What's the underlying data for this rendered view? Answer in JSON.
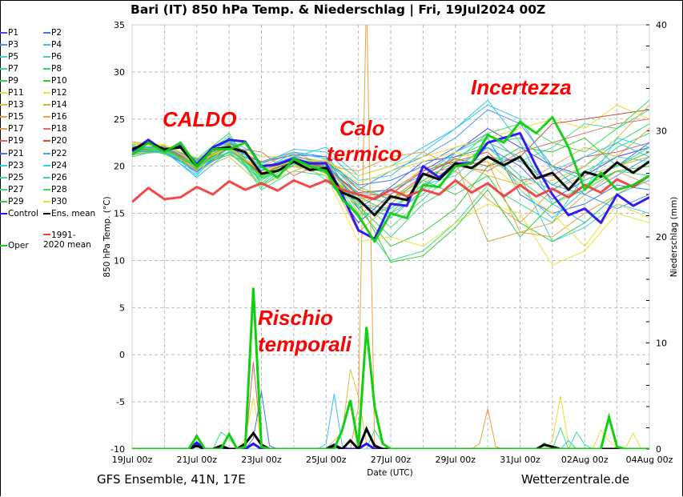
{
  "title": "Bari  (IT)  850 hPa Temp. & Niederschlag | Fri, 19Jul2024 00Z",
  "footer": {
    "left": "GFS Ensemble, 41N, 17E",
    "right": "Wetterzentrale.de"
  },
  "annotations": [
    "CALDO",
    "Calo",
    "termico",
    "Incertezza",
    "Rischio",
    "temporali"
  ],
  "chart_data": {
    "type": "line",
    "title": "Bari  (IT)  850 hPa Temp. & Niederschlag | Fri, 19Jul2024 00Z",
    "xlabel": "Date (UTC)",
    "ylabel": "850 hPa Temp. (°C)",
    "y2label": "Niederschlag (mm)",
    "xlim_hours": [
      0,
      384
    ],
    "ylim": [
      -10,
      35
    ],
    "y2lim": [
      0,
      40
    ],
    "grid": true,
    "legend_position": "left-outside",
    "x_tick_labels": [
      "19Jul 00z",
      "21Jul 00z",
      "23Jul 00z",
      "25Jul 00z",
      "27Jul 00z",
      "29Jul 00z",
      "31Jul 00z",
      "02Aug 00z",
      "04Aug 00z"
    ],
    "y_ticks": [
      35,
      30,
      25,
      20,
      15,
      10,
      5,
      0,
      -5,
      -10
    ],
    "y2_ticks": [
      40,
      30,
      20,
      10,
      0
    ],
    "main_step_hours": 12,
    "main_series": [
      {
        "name": "Control",
        "color": "#2a10f0",
        "values": [
          21.6,
          22.8,
          21.6,
          22.2,
          20.2,
          22.0,
          22.8,
          22.6,
          20.0,
          20.2,
          20.8,
          20.3,
          20.3,
          17.0,
          13.2,
          12.3,
          16.0,
          15.8,
          20.0,
          18.8,
          20.3,
          20.3,
          22.5,
          23.0,
          23.5,
          20.0,
          17.0,
          14.8,
          15.5,
          14.0,
          17.0,
          15.8,
          16.7
        ]
      },
      {
        "name": "Ens. mean",
        "color": "#000000",
        "values": [
          21.8,
          22.5,
          21.8,
          22.0,
          20.0,
          21.8,
          22.0,
          21.5,
          19.2,
          19.5,
          20.5,
          19.6,
          19.8,
          17.2,
          16.5,
          14.8,
          16.8,
          16.4,
          19.2,
          18.6,
          20.3,
          19.8,
          21.0,
          20.1,
          21.0,
          18.7,
          19.3,
          17.5,
          19.4,
          18.9,
          20.4,
          19.3,
          20.5
        ]
      },
      {
        "name": "1991-2020 mean",
        "color": "#f04040",
        "values": [
          16.2,
          17.7,
          16.5,
          16.7,
          17.8,
          17.0,
          18.4,
          17.5,
          18.2,
          17.4,
          18.5,
          17.8,
          18.5,
          17.5,
          17.0,
          16.5,
          17.5,
          16.8,
          17.5,
          17.0,
          18.5,
          17.2,
          18.2,
          16.8,
          18.0,
          16.8,
          17.6,
          16.7,
          18.0,
          17.2,
          18.6,
          17.8,
          19.0
        ]
      },
      {
        "name": "Oper",
        "color": "#10d010",
        "values": [
          21.2,
          22.5,
          21.5,
          22.5,
          20.0,
          21.8,
          21.8,
          22.5,
          20.0,
          18.8,
          20.8,
          20.0,
          19.5,
          16.5,
          14.8,
          12.0,
          15.0,
          14.5,
          18.0,
          17.8,
          20.0,
          20.3,
          23.3,
          22.5,
          24.7,
          23.5,
          25.2,
          22.0,
          17.5,
          19.3,
          17.5,
          18.0,
          19.0
        ]
      }
    ],
    "perturbation_step_hours": 24,
    "perturbations": [
      {
        "name": "P1",
        "color": "#5a3cf0",
        "values": [
          21.5,
          22.0,
          20.5,
          22.5,
          20.0,
          20.0,
          19.0,
          14.0,
          17.0,
          19.5,
          21.5,
          24.0,
          22.0,
          20.0,
          19.0,
          21.0,
          22.0
        ]
      },
      {
        "name": "P2",
        "color": "#3d7be8",
        "values": [
          22.0,
          21.5,
          20.0,
          23.0,
          19.5,
          21.0,
          20.5,
          18.0,
          18.5,
          20.0,
          22.0,
          23.0,
          17.0,
          15.0,
          16.0,
          18.0,
          17.5
        ]
      },
      {
        "name": "P3",
        "color": "#4a9af0",
        "values": [
          21.8,
          21.7,
          19.5,
          21.5,
          20.5,
          21.5,
          21.0,
          17.5,
          19.5,
          21.0,
          23.0,
          26.0,
          24.5,
          20.0,
          17.0,
          19.0,
          21.0
        ]
      },
      {
        "name": "P4",
        "color": "#30c8e8",
        "values": [
          22.2,
          21.5,
          19.0,
          22.8,
          21.0,
          21.0,
          22.0,
          19.0,
          20.0,
          22.0,
          24.0,
          27.0,
          22.5,
          16.0,
          14.0,
          17.0,
          18.5
        ]
      },
      {
        "name": "P5",
        "color": "#3cd0d8",
        "values": [
          21.5,
          22.0,
          20.2,
          21.8,
          19.0,
          20.0,
          19.5,
          16.0,
          15.5,
          18.0,
          19.0,
          22.0,
          19.0,
          12.0,
          13.5,
          16.0,
          15.0
        ]
      },
      {
        "name": "P6",
        "color": "#40d8a0",
        "values": [
          21.0,
          21.8,
          20.5,
          22.0,
          18.5,
          21.0,
          18.5,
          15.0,
          15.0,
          17.0,
          20.0,
          21.0,
          20.5,
          22.0,
          24.5,
          24.0,
          26.0
        ]
      },
      {
        "name": "P7",
        "color": "#40d890",
        "values": [
          21.6,
          21.4,
          19.8,
          22.5,
          17.5,
          19.5,
          19.0,
          14.5,
          10.0,
          11.0,
          14.0,
          18.0,
          16.0,
          14.0,
          19.0,
          22.0,
          23.5
        ]
      },
      {
        "name": "P8",
        "color": "#30d870",
        "values": [
          21.9,
          22.1,
          20.8,
          23.5,
          18.0,
          20.5,
          20.0,
          17.0,
          16.0,
          19.0,
          21.0,
          22.5,
          21.0,
          18.0,
          20.0,
          22.5,
          24.5
        ]
      },
      {
        "name": "P9",
        "color": "#30d050",
        "values": [
          21.4,
          21.9,
          20.1,
          21.2,
          19.8,
          20.8,
          20.2,
          16.8,
          15.0,
          18.5,
          17.0,
          19.0,
          14.0,
          12.0,
          14.0,
          17.0,
          19.0
        ]
      },
      {
        "name": "P10",
        "color": "#30d030",
        "values": [
          22.1,
          21.3,
          19.7,
          22.1,
          18.8,
          20.3,
          19.4,
          15.5,
          11.5,
          13.0,
          15.5,
          20.0,
          22.0,
          21.5,
          23.0,
          20.0,
          21.5
        ]
      },
      {
        "name": "P11",
        "color": "#e8e030",
        "values": [
          22.5,
          22.3,
          20.9,
          22.0,
          21.0,
          21.0,
          20.5,
          19.0,
          20.0,
          21.0,
          22.0,
          23.0,
          24.0,
          25.0,
          24.0,
          26.5,
          25.0
        ]
      },
      {
        "name": "P12",
        "color": "#eae43a",
        "values": [
          22.0,
          21.6,
          20.3,
          22.4,
          19.0,
          20.0,
          19.0,
          12.0,
          12.5,
          11.5,
          14.0,
          16.0,
          15.0,
          9.5,
          11.0,
          15.0,
          14.0
        ]
      },
      {
        "name": "P13",
        "color": "#d8c040",
        "values": [
          22.6,
          22.0,
          19.5,
          21.0,
          18.0,
          19.5,
          20.8,
          15.0,
          16.5,
          18.0,
          21.0,
          21.5,
          18.0,
          18.5,
          20.0,
          23.0,
          26.5
        ]
      },
      {
        "name": "P14",
        "color": "#e0b030",
        "values": [
          21.7,
          21.8,
          20.0,
          22.6,
          20.0,
          21.5,
          20.0,
          16.0,
          17.5,
          19.5,
          20.5,
          19.0,
          18.0,
          20.0,
          22.0,
          21.0,
          24.0
        ]
      },
      {
        "name": "P15",
        "color": "#e8a040",
        "values": [
          21.3,
          21.6,
          19.9,
          21.9,
          19.6,
          20.5,
          19.6,
          13.0,
          16.0,
          19.0,
          19.5,
          16.5,
          14.0,
          17.5,
          19.0,
          20.0,
          21.0
        ]
      },
      {
        "name": "P16",
        "color": "#eaa444",
        "values": [
          22.3,
          22.2,
          20.4,
          22.2,
          20.5,
          21.2,
          20.0,
          19.5,
          21.0,
          21.5,
          20.0,
          20.5,
          13.0,
          14.0,
          17.0,
          19.5,
          18.0
        ]
      },
      {
        "name": "P17",
        "color": "#e0a040",
        "values": [
          21.8,
          21.9,
          19.6,
          21.6,
          19.3,
          20.0,
          19.7,
          16.5,
          17.0,
          19.8,
          20.5,
          12.0,
          13.0,
          12.5,
          15.0,
          17.0,
          19.0
        ]
      },
      {
        "name": "P18",
        "color": "#e87060",
        "values": [
          21.2,
          21.7,
          20.6,
          22.0,
          21.5,
          19.0,
          20.5,
          17.5,
          16.5,
          19.0,
          20.0,
          19.5,
          21.5,
          22.5,
          23.5,
          24.5,
          25.0
        ]
      },
      {
        "name": "P19",
        "color": "#e06060",
        "values": [
          21.9,
          22.0,
          20.2,
          22.3,
          19.2,
          20.7,
          19.9,
          16.9,
          17.0,
          19.5,
          20.5,
          21.5,
          18.5,
          19.0,
          21.0,
          21.5,
          22.5
        ]
      },
      {
        "name": "P20",
        "color": "#c05040",
        "values": [
          21.7,
          21.9,
          20.1,
          22.1,
          19.1,
          20.6,
          19.8,
          17.2,
          17.5,
          19.0,
          20.8,
          20.0,
          21.0,
          24.5,
          25.0,
          25.5,
          26.0
        ]
      },
      {
        "name": "P21",
        "color": "#4a70f0",
        "values": [
          21.6,
          21.5,
          19.4,
          22.0,
          20.4,
          21.2,
          21.0,
          15.5,
          17.8,
          20.5,
          21.0,
          22.0,
          20.0,
          16.5,
          18.5,
          20.0,
          22.5
        ]
      },
      {
        "name": "P22",
        "color": "#4c9cf2",
        "values": [
          22.0,
          22.1,
          20.7,
          22.7,
          19.8,
          21.0,
          20.4,
          16.2,
          14.5,
          17.5,
          21.5,
          23.5,
          20.5,
          18.0,
          17.0,
          15.5,
          17.0
        ]
      },
      {
        "name": "P23",
        "color": "#32c8ea",
        "values": [
          21.5,
          21.6,
          18.8,
          21.6,
          20.2,
          21.8,
          21.5,
          18.5,
          19.0,
          21.5,
          24.0,
          26.5,
          25.0,
          19.5,
          21.0,
          22.5,
          21.0
        ]
      },
      {
        "name": "P24",
        "color": "#30d0f0",
        "values": [
          22.1,
          21.8,
          19.2,
          22.8,
          19.6,
          21.4,
          20.8,
          17.0,
          17.5,
          19.0,
          21.5,
          23.0,
          17.5,
          14.5,
          17.5,
          23.0,
          22.0
        ]
      },
      {
        "name": "P25",
        "color": "#40d8b0",
        "values": [
          21.3,
          21.5,
          20.3,
          21.5,
          18.7,
          20.3,
          19.8,
          14.8,
          15.5,
          18.0,
          20.0,
          22.0,
          19.0,
          17.5,
          19.5,
          21.0,
          20.5
        ]
      },
      {
        "name": "P26",
        "color": "#42da92",
        "values": [
          21.8,
          22.0,
          20.6,
          23.2,
          18.2,
          20.8,
          20.0,
          16.5,
          13.5,
          16.5,
          19.5,
          22.5,
          23.0,
          20.0,
          18.5,
          20.0,
          22.0
        ]
      },
      {
        "name": "P27",
        "color": "#40d870",
        "values": [
          21.6,
          21.9,
          20.0,
          22.4,
          17.8,
          20.2,
          19.3,
          15.8,
          12.5,
          16.0,
          18.0,
          21.0,
          18.5,
          16.0,
          17.5,
          19.5,
          19.0
        ]
      },
      {
        "name": "P28",
        "color": "#40e050",
        "values": [
          22.0,
          21.7,
          20.2,
          21.4,
          18.5,
          20.5,
          20.3,
          17.8,
          16.5,
          18.5,
          20.5,
          23.5,
          24.5,
          22.5,
          21.5,
          24.0,
          27.0
        ]
      },
      {
        "name": "P29",
        "color": "#32d232",
        "values": [
          21.4,
          21.8,
          19.9,
          22.2,
          18.9,
          20.9,
          19.2,
          16.3,
          9.8,
          10.5,
          13.5,
          17.5,
          12.5,
          16.0,
          18.0,
          19.5,
          20.0
        ]
      },
      {
        "name": "P30",
        "color": "#f0e030",
        "values": [
          22.4,
          22.2,
          20.4,
          22.0,
          19.4,
          20.6,
          20.6,
          18.2,
          19.5,
          20.5,
          21.5,
          20.5,
          17.5,
          15.0,
          11.5,
          16.0,
          14.5
        ]
      }
    ],
    "precip_step_hours": 6,
    "precipitation_mm": [
      {
        "name": "P11",
        "color": "#e8e030",
        "points": [
          [
            84,
            1.0
          ],
          [
            90,
            4.8
          ],
          [
            96,
            0.5
          ],
          [
            312,
            0.8
          ],
          [
            318,
            5.0
          ],
          [
            324,
            0.5
          ],
          [
            348,
            1.8
          ],
          [
            354,
            0.8
          ],
          [
            372,
            1.5
          ]
        ]
      },
      {
        "name": "P13",
        "color": "#d8c040",
        "points": [
          [
            150,
            0.8
          ],
          [
            156,
            1.5
          ],
          [
            162,
            7.5
          ],
          [
            168,
            5.0
          ],
          [
            174,
            0.5
          ]
        ]
      },
      {
        "name": "P15",
        "color": "#e8a040",
        "points": [
          [
            48,
            1.4
          ],
          [
            258,
            0.5
          ],
          [
            264,
            3.8
          ],
          [
            270,
            0.2
          ]
        ]
      },
      {
        "name": "P16",
        "color": "#eaa444",
        "points": [
          [
            168,
            4.0
          ],
          [
            174,
            45
          ],
          [
            180,
            0.5
          ]
        ]
      },
      {
        "name": "P19",
        "color": "#e06060",
        "points": [
          [
            90,
            8.2
          ],
          [
            96,
            0.4
          ]
        ]
      },
      {
        "name": "P2",
        "color": "#3d7be8",
        "points": [
          [
            90,
            1.0
          ],
          [
            96,
            5.4
          ],
          [
            102,
            0.3
          ]
        ]
      },
      {
        "name": "P4",
        "color": "#30c8e8",
        "points": [
          [
            66,
            0.4
          ],
          [
            144,
            0.5
          ],
          [
            150,
            5.2
          ],
          [
            156,
            0.3
          ],
          [
            324,
            0.8
          ]
        ]
      },
      {
        "name": "P26",
        "color": "#42da92",
        "points": [
          [
            66,
            1.6
          ],
          [
            72,
            1.0
          ],
          [
            180,
            1.8
          ],
          [
            186,
            0.5
          ],
          [
            306,
            0.6
          ],
          [
            318,
            2.0
          ],
          [
            330,
            1.6
          ],
          [
            336,
            0.4
          ]
        ]
      },
      {
        "name": "Control",
        "color": "#2a10f0",
        "points": [
          [
            48,
            0.6
          ],
          [
            90,
            0.5
          ],
          [
            150,
            0.4
          ],
          [
            174,
            0.5
          ]
        ]
      },
      {
        "name": "Ens. mean",
        "color": "#000000",
        "points": [
          [
            48,
            0.3
          ],
          [
            66,
            0.3
          ],
          [
            84,
            0.5
          ],
          [
            90,
            1.5
          ],
          [
            96,
            0.4
          ],
          [
            150,
            0.3
          ],
          [
            162,
            0.8
          ],
          [
            174,
            1.9
          ],
          [
            180,
            0.3
          ],
          [
            306,
            0.4
          ],
          [
            312,
            0.2
          ]
        ]
      },
      {
        "name": "Oper",
        "color": "#10d010",
        "points": [
          [
            48,
            1.2
          ],
          [
            72,
            1.4
          ],
          [
            84,
            0.2
          ],
          [
            90,
            15.2
          ],
          [
            96,
            0.2
          ],
          [
            156,
            1.8
          ],
          [
            162,
            4.6
          ],
          [
            168,
            0.3
          ],
          [
            174,
            11.5
          ],
          [
            180,
            4.0
          ],
          [
            186,
            0.5
          ],
          [
            354,
            3.0
          ],
          [
            360,
            0.2
          ]
        ]
      }
    ]
  }
}
